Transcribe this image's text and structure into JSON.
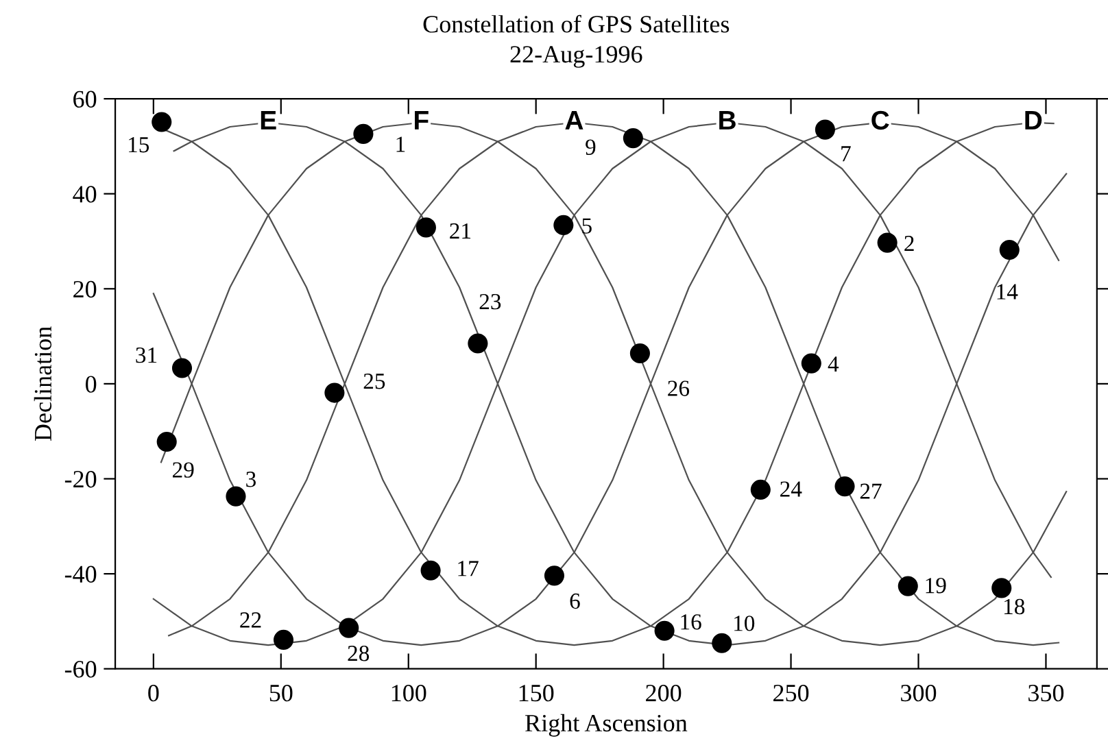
{
  "chart_data": {
    "type": "line",
    "title": "Constellation of GPS Satellites",
    "subtitle": "22-Aug-1996",
    "xlabel": "Right Ascension",
    "ylabel": "Declination",
    "xlim": [
      -15,
      370
    ],
    "xticks": [
      0,
      50,
      100,
      150,
      200,
      250,
      300,
      350
    ],
    "ylim": [
      -60,
      60
    ],
    "yticks": [
      -60,
      -40,
      -20,
      0,
      20,
      40,
      60
    ],
    "grid": false,
    "legend": false,
    "series": [
      {
        "name": "E",
        "color": "#505050",
        "x": [
          8,
          15,
          30,
          45,
          60,
          75,
          90,
          105,
          120,
          135,
          150,
          165,
          180,
          195,
          210,
          225,
          240,
          255,
          270,
          285,
          300,
          315,
          330,
          345,
          358
        ],
        "values": [
          49.0,
          51.0,
          54.1,
          55.0,
          54.1,
          51.0,
          45.3,
          35.5,
          20.3,
          0,
          -20.3,
          -35.5,
          -45.3,
          -51.0,
          -54.1,
          -55.0,
          -54.1,
          -51.0,
          -45.3,
          -35.5,
          -20.3,
          0,
          20.3,
          35.5,
          44.2
        ]
      },
      {
        "name": "F",
        "color": "#505050",
        "x": [
          3,
          15,
          30,
          45,
          60,
          75,
          90,
          105,
          120,
          135,
          150,
          165,
          180,
          195,
          210,
          225,
          240,
          255,
          270,
          285,
          300,
          315,
          330,
          345,
          358
        ],
        "values": [
          -16.5,
          0,
          20.3,
          35.5,
          45.3,
          51.0,
          54.1,
          55.0,
          54.1,
          51.0,
          45.3,
          35.5,
          20.3,
          0,
          -20.3,
          -35.5,
          -45.3,
          -51.0,
          -54.1,
          -55.0,
          -54.1,
          -51.0,
          -45.3,
          -35.5,
          -22.7
        ]
      },
      {
        "name": "A",
        "color": "#505050",
        "x": [
          6,
          15,
          30,
          45,
          60,
          75,
          90,
          105,
          120,
          135,
          150,
          165,
          180,
          195,
          210,
          225,
          240,
          255,
          270,
          285,
          300,
          315,
          330,
          345,
          355
        ],
        "values": [
          -53.0,
          -51.0,
          -45.3,
          -35.5,
          -20.3,
          0,
          20.3,
          35.5,
          45.3,
          51.0,
          54.1,
          55.0,
          54.1,
          51.0,
          45.3,
          35.5,
          20.3,
          0,
          -20.3,
          -35.5,
          -45.3,
          -51.0,
          -54.1,
          -55.0,
          -54.5
        ]
      },
      {
        "name": "B",
        "color": "#505050",
        "x": [
          0,
          15,
          30,
          45,
          60,
          75,
          90,
          105,
          120,
          135,
          150,
          165,
          180,
          195,
          210,
          225,
          240,
          255,
          270,
          285,
          300,
          315,
          330,
          345,
          352
        ],
        "values": [
          -45.3,
          -51.0,
          -54.1,
          -55.0,
          -54.1,
          -51.0,
          -45.3,
          -35.5,
          -20.3,
          0,
          20.3,
          35.5,
          45.3,
          51.0,
          54.1,
          55.0,
          54.1,
          51.0,
          45.3,
          35.5,
          20.3,
          0,
          -20.3,
          -35.5,
          -40.7
        ]
      },
      {
        "name": "C",
        "color": "#505050",
        "x": [
          0,
          15,
          30,
          45,
          60,
          75,
          90,
          105,
          120,
          135,
          150,
          165,
          180,
          195,
          210,
          225,
          240,
          255,
          270,
          285,
          300,
          315,
          330,
          345,
          355
        ],
        "values": [
          19.0,
          0,
          -20.3,
          -35.5,
          -45.3,
          -51.0,
          -54.1,
          -55.0,
          -54.1,
          -51.0,
          -45.3,
          -35.5,
          -20.3,
          0,
          20.3,
          35.5,
          45.3,
          51.0,
          54.1,
          55.0,
          54.1,
          51.0,
          45.3,
          35.5,
          26.0
        ]
      },
      {
        "name": "D",
        "color": "#505050",
        "x": [
          3,
          15,
          30,
          45,
          60,
          75,
          90,
          105,
          120,
          135,
          150,
          165,
          180,
          195,
          210,
          225,
          240,
          255,
          270,
          285,
          300,
          315,
          330,
          345,
          353
        ],
        "values": [
          53.8,
          51.0,
          45.3,
          35.5,
          20.3,
          0,
          -20.3,
          -35.5,
          -45.3,
          -51.0,
          -54.1,
          -55.0,
          -54.1,
          -51.0,
          -45.3,
          -35.5,
          -20.3,
          0,
          20.3,
          35.5,
          45.3,
          51.0,
          54.1,
          55.0,
          54.8
        ]
      },
      {
        "type": "scatter",
        "color": "#000000",
        "marker": "circle",
        "x": [
          3.2,
          82.3,
          106.9,
          127.2,
          11.2,
          71.0,
          160.8,
          188.1,
          263.4,
          287.8,
          335.7,
          190.8,
          258.0,
          5.2,
          32.3,
          51.0,
          76.6,
          108.7,
          157.2,
          200.4,
          222.9,
          238.1,
          271.1,
          295.9,
          332.6
        ],
        "values": [
          55.1,
          52.6,
          32.9,
          8.5,
          3.3,
          -1.9,
          33.4,
          51.7,
          53.5,
          29.7,
          28.2,
          6.4,
          4.3,
          -12.2,
          -23.7,
          -53.9,
          -51.4,
          -39.3,
          -40.4,
          -52.0,
          -54.6,
          -22.3,
          -21.6,
          -42.6,
          -43.0
        ]
      }
    ],
    "annotations": [
      {
        "text": "15",
        "x": 3.2,
        "y": 55.1
      },
      {
        "text": "1",
        "x": 82.3,
        "y": 52.6
      },
      {
        "text": "21",
        "x": 106.9,
        "y": 32.9
      },
      {
        "text": "23",
        "x": 127.2,
        "y": 8.5
      },
      {
        "text": "31",
        "x": 11.2,
        "y": 3.3
      },
      {
        "text": "25",
        "x": 71.0,
        "y": -1.9
      },
      {
        "text": "5",
        "x": 160.8,
        "y": 33.4
      },
      {
        "text": "9",
        "x": 188.1,
        "y": 51.7
      },
      {
        "text": "7",
        "x": 263.4,
        "y": 53.5
      },
      {
        "text": "2",
        "x": 287.8,
        "y": 29.7
      },
      {
        "text": "14",
        "x": 335.7,
        "y": 28.2
      },
      {
        "text": "26",
        "x": 190.8,
        "y": 6.4
      },
      {
        "text": "4",
        "x": 258.0,
        "y": 4.3
      },
      {
        "text": "29",
        "x": 5.2,
        "y": -12.2
      },
      {
        "text": "3",
        "x": 32.3,
        "y": -23.7
      },
      {
        "text": "22",
        "x": 51.0,
        "y": -53.9
      },
      {
        "text": "28",
        "x": 76.6,
        "y": -51.4
      },
      {
        "text": "17",
        "x": 108.7,
        "y": -39.3
      },
      {
        "text": "6",
        "x": 157.2,
        "y": -40.4
      },
      {
        "text": "16",
        "x": 200.4,
        "y": -52.0
      },
      {
        "text": "10",
        "x": 222.9,
        "y": -54.6
      },
      {
        "text": "24",
        "x": 238.1,
        "y": -22.3
      },
      {
        "text": "27",
        "x": 271.1,
        "y": -21.6
      },
      {
        "text": "19",
        "x": 295.9,
        "y": -42.6
      },
      {
        "text": "18",
        "x": 332.6,
        "y": -43.0
      }
    ]
  }
}
